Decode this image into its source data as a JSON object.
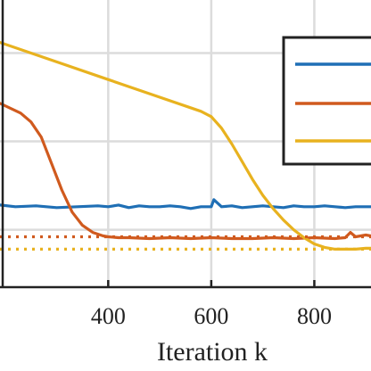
{
  "chart_data": {
    "type": "line",
    "xlabel": "Iteration k",
    "ylabel": "",
    "xlim": [
      190,
      910
    ],
    "ylim": [
      -1.15,
      2.1
    ],
    "x_ticks": [
      400,
      600,
      800
    ],
    "x_tick_labels": [
      "400",
      "600",
      "800"
    ],
    "y_gridlines": [
      1.5,
      0.5,
      -0.5
    ],
    "grid": true,
    "legend": {
      "placement": "top-right",
      "entries": [
        {
          "color": "#1f6fb5"
        },
        {
          "color": "#d05a1e"
        },
        {
          "color": "#e8b21f"
        }
      ]
    },
    "series": [
      {
        "color": "#1f6fb5",
        "style": "solid",
        "x": [
          190,
          220,
          260,
          300,
          340,
          380,
          400,
          420,
          440,
          460,
          480,
          500,
          520,
          540,
          560,
          580,
          600,
          605,
          620,
          640,
          660,
          680,
          700,
          720,
          740,
          760,
          780,
          800,
          820,
          840,
          860,
          880,
          900,
          910
        ],
        "y": [
          -0.22,
          -0.24,
          -0.23,
          -0.25,
          -0.24,
          -0.23,
          -0.24,
          -0.22,
          -0.25,
          -0.23,
          -0.24,
          -0.24,
          -0.23,
          -0.24,
          -0.26,
          -0.24,
          -0.24,
          -0.16,
          -0.24,
          -0.23,
          -0.25,
          -0.24,
          -0.23,
          -0.24,
          -0.25,
          -0.23,
          -0.24,
          -0.24,
          -0.23,
          -0.24,
          -0.25,
          -0.24,
          -0.24,
          -0.24
        ]
      },
      {
        "color": "#d05a1e",
        "style": "solid",
        "x": [
          190,
          230,
          250,
          270,
          290,
          310,
          330,
          350,
          370,
          390,
          400,
          420,
          440,
          480,
          520,
          560,
          600,
          640,
          680,
          720,
          760,
          800,
          840,
          860,
          870,
          880,
          900,
          910
        ],
        "y": [
          0.93,
          0.82,
          0.72,
          0.55,
          0.25,
          -0.05,
          -0.3,
          -0.45,
          -0.53,
          -0.57,
          -0.58,
          -0.59,
          -0.59,
          -0.6,
          -0.59,
          -0.6,
          -0.59,
          -0.6,
          -0.6,
          -0.59,
          -0.6,
          -0.59,
          -0.6,
          -0.59,
          -0.53,
          -0.58,
          -0.56,
          -0.57
        ]
      },
      {
        "color": "#e8b21f",
        "style": "solid",
        "x": [
          190,
          300,
          400,
          500,
          580,
          600,
          620,
          640,
          660,
          680,
          700,
          720,
          740,
          760,
          780,
          800,
          820,
          840,
          860,
          880,
          900,
          910
        ],
        "y": [
          1.62,
          1.4,
          1.2,
          1.0,
          0.84,
          0.78,
          0.65,
          0.47,
          0.27,
          0.07,
          -0.11,
          -0.26,
          -0.39,
          -0.5,
          -0.59,
          -0.66,
          -0.7,
          -0.72,
          -0.72,
          -0.72,
          -0.71,
          -0.71
        ]
      },
      {
        "color": "#d05a1e",
        "style": "dotted",
        "x": [
          190,
          910
        ],
        "y": [
          -0.58,
          -0.58
        ]
      },
      {
        "color": "#e8b21f",
        "style": "dotted",
        "x": [
          190,
          910
        ],
        "y": [
          -0.72,
          -0.72
        ]
      }
    ]
  }
}
